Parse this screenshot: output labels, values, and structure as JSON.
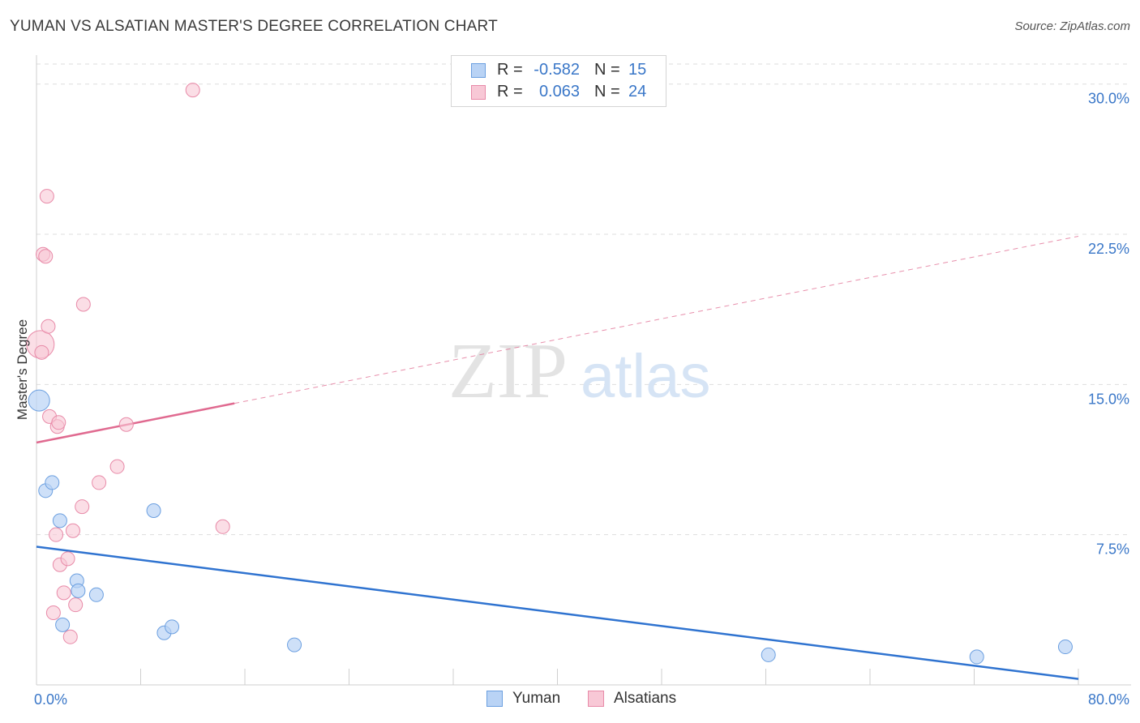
{
  "header": {
    "title": "YUMAN VS ALSATIAN MASTER'S DEGREE CORRELATION CHART",
    "source": "Source: ZipAtlas.com"
  },
  "legend": {
    "rows": [
      {
        "r_label": "R =",
        "r_value": "-0.582",
        "n_label": "N =",
        "n_value": "15"
      },
      {
        "r_label": "R =",
        "r_value": "0.063",
        "n_label": "N =",
        "n_value": "24"
      }
    ]
  },
  "watermark": {
    "zip": "ZIP",
    "atlas": "atlas"
  },
  "colors": {
    "yuman_fill": "#b9d3f5",
    "yuman_stroke": "#6b9fe0",
    "yuman_line": "#2f73d0",
    "alsatian_fill": "#f8c8d6",
    "alsatian_stroke": "#e88aa8",
    "alsatian_line": "#e06a90",
    "tick_text": "#3a77c8",
    "grid": "#dddddd"
  },
  "chart_data": {
    "type": "scatter",
    "title": "YUMAN VS ALSATIAN MASTER'S DEGREE CORRELATION CHART",
    "xlabel": "",
    "ylabel": "Master's Degree",
    "xlim": [
      0,
      80
    ],
    "ylim": [
      0,
      31
    ],
    "x_tick_labels": [
      "0.0%",
      "80.0%"
    ],
    "y_ticks": [
      7.5,
      15.0,
      22.5,
      30.0
    ],
    "y_tick_labels": [
      "7.5%",
      "15.0%",
      "22.5%",
      "30.0%"
    ],
    "series": [
      {
        "name": "Yuman",
        "points": [
          {
            "x": 0.2,
            "y": 14.2,
            "big": true
          },
          {
            "x": 0.7,
            "y": 9.7
          },
          {
            "x": 1.2,
            "y": 10.1
          },
          {
            "x": 1.8,
            "y": 8.2
          },
          {
            "x": 2.0,
            "y": 3.0
          },
          {
            "x": 3.1,
            "y": 5.2
          },
          {
            "x": 3.2,
            "y": 4.7
          },
          {
            "x": 4.6,
            "y": 4.5
          },
          {
            "x": 9.0,
            "y": 8.7
          },
          {
            "x": 9.8,
            "y": 2.6
          },
          {
            "x": 10.4,
            "y": 2.9
          },
          {
            "x": 19.8,
            "y": 2.0
          },
          {
            "x": 56.2,
            "y": 1.5
          },
          {
            "x": 72.2,
            "y": 1.4
          },
          {
            "x": 79.0,
            "y": 1.9
          }
        ],
        "trend": {
          "x0": 0,
          "y0": 6.9,
          "x1": 80,
          "y1": 0.3,
          "dashed_to": null
        }
      },
      {
        "name": "Alsatians",
        "points": [
          {
            "x": 0.3,
            "y": 17.0,
            "big": true
          },
          {
            "x": 0.4,
            "y": 16.6
          },
          {
            "x": 0.5,
            "y": 21.5
          },
          {
            "x": 0.7,
            "y": 21.4
          },
          {
            "x": 0.8,
            "y": 24.4
          },
          {
            "x": 0.9,
            "y": 17.9
          },
          {
            "x": 1.0,
            "y": 13.4
          },
          {
            "x": 1.5,
            "y": 7.5
          },
          {
            "x": 1.6,
            "y": 12.9
          },
          {
            "x": 1.7,
            "y": 13.1
          },
          {
            "x": 1.8,
            "y": 6.0
          },
          {
            "x": 1.3,
            "y": 3.6
          },
          {
            "x": 2.1,
            "y": 4.6
          },
          {
            "x": 2.4,
            "y": 6.3
          },
          {
            "x": 2.6,
            "y": 2.4
          },
          {
            "x": 2.8,
            "y": 7.7
          },
          {
            "x": 3.0,
            "y": 4.0
          },
          {
            "x": 3.5,
            "y": 8.9
          },
          {
            "x": 3.6,
            "y": 19.0
          },
          {
            "x": 4.8,
            "y": 10.1
          },
          {
            "x": 6.2,
            "y": 10.9
          },
          {
            "x": 6.9,
            "y": 13.0
          },
          {
            "x": 12.0,
            "y": 29.7
          },
          {
            "x": 14.3,
            "y": 7.9
          }
        ],
        "trend": {
          "x0": 0,
          "y0": 12.1,
          "x1": 80,
          "y1": 22.4,
          "solid_until_x": 15.2
        }
      }
    ]
  },
  "bottom_legend": {
    "items": [
      "Yuman",
      "Alsatians"
    ]
  }
}
